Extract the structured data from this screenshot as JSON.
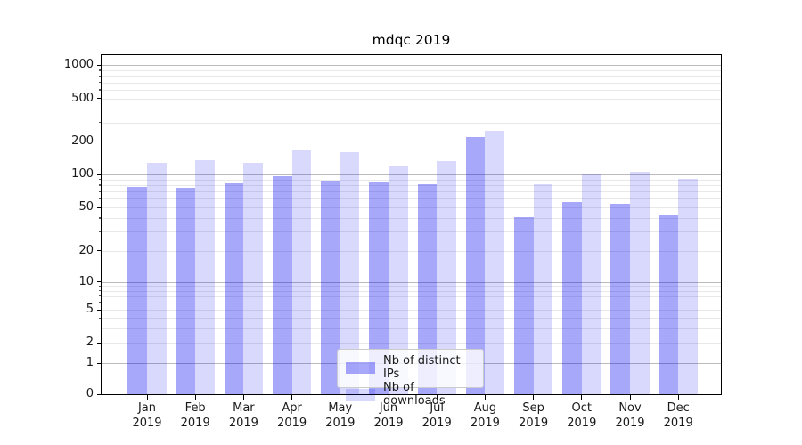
{
  "title": "mdqc 2019",
  "legend": {
    "entries": [
      {
        "label": "Nb of distinct IPs"
      },
      {
        "label": "Nb of downloads"
      }
    ]
  },
  "colors": {
    "bar_distinct_ips": "#0000F057",
    "bar_downloads": "#0000F026",
    "grid_major": "#bbbbbb",
    "grid_minor": "#e8e8e8",
    "spine": "#000000",
    "text": "#1a1a1a",
    "legend_border": "#cccccc"
  },
  "y_axis": {
    "scale": "symlog",
    "tick_values": [
      0,
      1,
      2,
      5,
      10,
      20,
      50,
      100,
      200,
      500,
      1000
    ],
    "tick_labels": [
      "0",
      "1",
      "2",
      "5",
      "10",
      "20",
      "50",
      "100",
      "200",
      "500",
      "1000"
    ]
  },
  "x_axis": {
    "month_labels": [
      "Jan",
      "Feb",
      "Mar",
      "Apr",
      "May",
      "Jun",
      "Jul",
      "Aug",
      "Sep",
      "Oct",
      "Nov",
      "Dec"
    ],
    "year_label": "2019"
  },
  "chart_data": {
    "type": "bar",
    "title": "mdqc 2019",
    "xlabel": "",
    "ylabel": "",
    "yscale": "symlog",
    "ylim": [
      0,
      1255
    ],
    "grid": true,
    "legend_position": "lower center",
    "categories": [
      "Jan 2019",
      "Feb 2019",
      "Mar 2019",
      "Apr 2019",
      "May 2019",
      "Jun 2019",
      "Jul 2019",
      "Aug 2019",
      "Sep 2019",
      "Oct 2019",
      "Nov 2019",
      "Dec 2019"
    ],
    "series": [
      {
        "name": "Nb of distinct IPs",
        "values": [
          77,
          75,
          83,
          96,
          88,
          84,
          81,
          220,
          41,
          56,
          54,
          42
        ]
      },
      {
        "name": "Nb of downloads",
        "values": [
          128,
          136,
          128,
          167,
          161,
          119,
          133,
          250,
          82,
          100,
          105,
          91
        ]
      }
    ]
  }
}
